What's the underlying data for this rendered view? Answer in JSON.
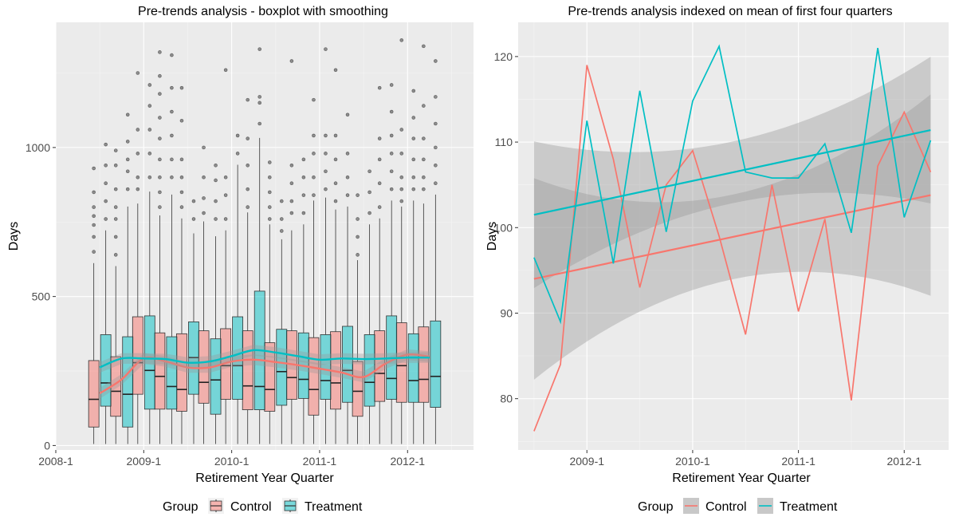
{
  "colors": {
    "control": "#F8766D",
    "treatment": "#00BFC4",
    "panel": "#EBEBEB",
    "ci": "#999999"
  },
  "chart_data": [
    {
      "type": "boxplot",
      "title": "Pre-trends analysis - boxplot with smoothing",
      "xlabel": "Retirement Year Quarter",
      "ylabel": "Days",
      "xlim": [
        2008.0,
        2012.75
      ],
      "ylim": [
        -15,
        1420
      ],
      "x_ticks": [
        {
          "value": 2008.0,
          "label": "2008-1"
        },
        {
          "value": 2009.0,
          "label": "2009-1"
        },
        {
          "value": 2010.0,
          "label": "2010-1"
        },
        {
          "value": 2011.0,
          "label": "2011-1"
        },
        {
          "value": 2012.0,
          "label": "2012-1"
        }
      ],
      "y_ticks": [
        {
          "value": 0,
          "label": "0"
        },
        {
          "value": 500,
          "label": "500"
        },
        {
          "value": 1000,
          "label": "1000"
        }
      ],
      "legend": {
        "position": "bottom",
        "title": "Group",
        "items": [
          "Control",
          "Treatment"
        ]
      },
      "boxes": {
        "x": [
          2008.5,
          2008.75,
          2009.0,
          2009.25,
          2009.5,
          2009.75,
          2010.0,
          2010.25,
          2010.5,
          2010.75,
          2011.0,
          2011.25,
          2011.5,
          2011.75,
          2012.0,
          2012.25
        ],
        "control": {
          "q1": [
            62,
            98,
            172,
            122,
            115,
            142,
            155,
            120,
            115,
            155,
            102,
            122,
            98,
            148,
            145,
            145
          ],
          "median": [
            155,
            182,
            278,
            232,
            188,
            212,
            268,
            200,
            188,
            228,
            188,
            210,
            182,
            242,
            268,
            222
          ],
          "q3": [
            285,
            298,
            432,
            378,
            375,
            385,
            392,
            385,
            345,
            385,
            362,
            382,
            282,
            385,
            412,
            398
          ],
          "whisk_lo": [
            5,
            5,
            5,
            5,
            5,
            5,
            5,
            5,
            5,
            5,
            5,
            5,
            5,
            5,
            5,
            5
          ],
          "whisk_hi": [
            612,
            602,
            812,
            772,
            762,
            752,
            722,
            782,
            742,
            722,
            822,
            792,
            622,
            762,
            802,
            812
          ],
          "outliers": [
            [
              650,
              700,
              740,
              770,
              800,
              850,
              930
            ],
            [
              640,
              700,
              760,
              800,
              860,
              940,
              990
            ],
            [
              860,
              900,
              980,
              1060,
              1250
            ],
            [
              800,
              850,
              900,
              960,
              1030,
              1100,
              1180,
              1240,
              1320
            ],
            [
              800,
              850,
              900,
              960,
              1090,
              1200
            ],
            [
              780,
              830,
              900,
              1000
            ],
            [
              760,
              840,
              900,
              1260
            ],
            [
              800,
              860,
              940,
              1030,
              1160
            ],
            [
              760,
              800,
              850,
              900,
              950
            ],
            [
              780,
              820,
              880,
              940,
              1290
            ],
            [
              840,
              900,
              980,
              1040,
              1160
            ],
            [
              820,
              880,
              960,
              1040,
              1260
            ],
            [
              640,
              700,
              760,
              840
            ],
            [
              800,
              880,
              960,
              1030,
              1200
            ],
            [
              820,
              860,
              900,
              980,
              1060,
              1360
            ],
            [
              860,
              900,
              960,
              1030,
              1140,
              1340
            ]
          ]
        },
        "treatment": {
          "q1": [
            132,
            62,
            122,
            122,
            172,
            105,
            155,
            120,
            135,
            158,
            155,
            145,
            132,
            155,
            145,
            128
          ],
          "median": [
            210,
            172,
            252,
            198,
            295,
            220,
            268,
            198,
            248,
            222,
            218,
            252,
            212,
            225,
            218,
            232
          ],
          "q3": [
            372,
            365,
            435,
            365,
            415,
            358,
            432,
            518,
            390,
            378,
            372,
            400,
            372,
            435,
            375,
            418
          ],
          "whisk_lo": [
            5,
            5,
            5,
            5,
            5,
            5,
            5,
            5,
            5,
            5,
            5,
            5,
            5,
            5,
            5,
            5
          ],
          "whisk_hi": [
            722,
            802,
            852,
            842,
            712,
            702,
            942,
            1032,
            692,
            742,
            832,
            802,
            742,
            822,
            822,
            842
          ],
          "outliers": [
            [
              760,
              820,
              880,
              940,
              1010
            ],
            [
              860,
              920,
              960,
              1020,
              1110
            ],
            [
              900,
              980,
              1060,
              1140,
              1210
            ],
            [
              900,
              960,
              1040,
              1120,
              1200,
              1310
            ],
            [
              760,
              820
            ],
            [
              760,
              820,
              890,
              940
            ],
            [
              980,
              1040
            ],
            [
              1080,
              1150,
              1170,
              1330
            ],
            [
              720,
              760,
              820
            ],
            [
              780,
              840,
              900,
              960
            ],
            [
              860,
              920,
              980,
              1040,
              1330
            ],
            [
              840,
              900,
              980,
              1110
            ],
            [
              780,
              850,
              920
            ],
            [
              860,
              920,
              980,
              1040,
              1120,
              1210
            ],
            [
              860,
              900,
              960,
              1030,
              1100,
              1190
            ],
            [
              880,
              940,
              1000,
              1080,
              1170,
              1290
            ]
          ]
        }
      },
      "smooth": {
        "x": [
          2008.5,
          2008.75,
          2009.0,
          2009.25,
          2009.5,
          2009.75,
          2010.0,
          2010.25,
          2010.5,
          2010.75,
          2011.0,
          2011.25,
          2011.5,
          2011.75,
          2012.0,
          2012.25
        ],
        "control": [
          175,
          222,
          292,
          282,
          262,
          262,
          282,
          288,
          280,
          270,
          258,
          245,
          230,
          275,
          305,
          298
        ],
        "treatment": [
          262,
          292,
          292,
          290,
          278,
          282,
          300,
          320,
          312,
          300,
          288,
          292,
          290,
          292,
          295,
          295
        ]
      }
    },
    {
      "type": "line",
      "title": "Pre-trends analysis indexed on mean of first four quarters",
      "xlabel": "Retirement Year Quarter",
      "ylabel": "Days",
      "xlim": [
        2008.35,
        2012.42
      ],
      "ylim": [
        74,
        124
      ],
      "x_ticks": [
        {
          "value": 2009.0,
          "label": "2009-1"
        },
        {
          "value": 2010.0,
          "label": "2010-1"
        },
        {
          "value": 2011.0,
          "label": "2011-1"
        },
        {
          "value": 2012.0,
          "label": "2012-1"
        }
      ],
      "y_ticks": [
        {
          "value": 80,
          "label": "80"
        },
        {
          "value": 90,
          "label": "90"
        },
        {
          "value": 100,
          "label": "100"
        },
        {
          "value": 110,
          "label": "110"
        },
        {
          "value": 120,
          "label": "120"
        }
      ],
      "legend": {
        "position": "bottom",
        "title": "Group",
        "items": [
          "Control",
          "Treatment"
        ]
      },
      "x": [
        2008.5,
        2008.75,
        2009.0,
        2009.25,
        2009.5,
        2009.75,
        2010.0,
        2010.25,
        2010.5,
        2010.75,
        2011.0,
        2011.25,
        2011.5,
        2011.75,
        2012.0,
        2012.25
      ],
      "series": [
        {
          "name": "Control",
          "values": [
            76.2,
            84.0,
            119.0,
            108.0,
            93.0,
            105.0,
            109.0,
            99.0,
            87.5,
            105.0,
            90.2,
            101.0,
            79.8,
            107.2,
            113.5,
            106.5
          ],
          "trend": [
            94.0,
            103.8
          ],
          "ci_lo": [
            82.5,
            92.0
          ],
          "ci_hi": [
            105.8,
            115.8
          ]
        },
        {
          "name": "Treatment",
          "values": [
            96.5,
            89.0,
            112.5,
            95.8,
            116.0,
            99.5,
            114.8,
            121.2,
            106.5,
            105.8,
            105.8,
            109.8,
            99.4,
            121.0,
            101.2,
            110.2
          ],
          "trend": [
            101.5,
            111.4
          ],
          "ci_lo": [
            93.0,
            102.8
          ],
          "ci_hi": [
            110.2,
            119.9
          ]
        }
      ]
    }
  ],
  "legend_labels": {
    "title": "Group",
    "control": "Control",
    "treatment": "Treatment"
  }
}
